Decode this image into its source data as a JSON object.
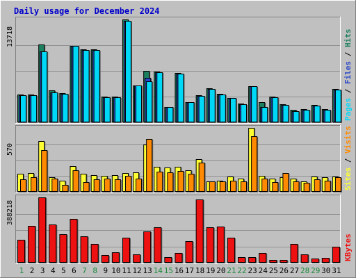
{
  "title": "Daily usage for December 2024",
  "colors": {
    "background": "#c0c0c0",
    "frame_light": "#ffffff",
    "frame_dark": "#808080",
    "grid": "#909090",
    "title_blue": "#0000cc",
    "hits": "#1c7f5f",
    "files": "#2c48c8",
    "pages": "#00d8f8",
    "visits": "#ff8a00",
    "sites": "#ffff33",
    "kbytes": "#ee1111",
    "weekday_label": "#000000",
    "weekend_label": "#1a8a3a"
  },
  "chart_data": [
    {
      "type": "bar",
      "title": "Daily usage for December 2024",
      "ylabel_max": "13718",
      "legend": [
        "Pages",
        "Files",
        "Hits"
      ],
      "legend_colors": [
        "#00d8f8",
        "#2c48c8",
        "#1c7f5f"
      ],
      "ylim": [
        0,
        13718
      ],
      "categories": [
        "1",
        "2",
        "3",
        "4",
        "5",
        "6",
        "7",
        "8",
        "9",
        "10",
        "11",
        "12",
        "13",
        "14",
        "15",
        "16",
        "17",
        "18",
        "19",
        "20",
        "21",
        "22",
        "23",
        "24",
        "25",
        "26",
        "27",
        "28",
        "29",
        "30",
        "31"
      ],
      "series": [
        {
          "name": "Hits",
          "values": [
            3680,
            3690,
            10400,
            4300,
            3910,
            10200,
            9700,
            9700,
            3420,
            3420,
            13718,
            4900,
            6880,
            6760,
            2040,
            6540,
            2720,
            3610,
            4550,
            3760,
            3290,
            2470,
            4840,
            2710,
            3420,
            2440,
            1690,
            1800,
            2300,
            1800,
            4420
          ]
        },
        {
          "name": "Files",
          "values": [
            3600,
            3600,
            9500,
            3990,
            3800,
            10180,
            9650,
            9660,
            3330,
            3340,
            13500,
            4900,
            5960,
            6700,
            2040,
            6470,
            2660,
            3550,
            4480,
            3680,
            3200,
            2450,
            4780,
            2000,
            3340,
            2280,
            1440,
            1690,
            2200,
            1650,
            4380
          ]
        },
        {
          "name": "Pages",
          "values": [
            3600,
            3600,
            9500,
            3990,
            3800,
            10180,
            9650,
            9660,
            3330,
            3340,
            13500,
            4900,
            5510,
            6700,
            2040,
            6470,
            2660,
            3550,
            4480,
            3680,
            3200,
            2450,
            4780,
            2000,
            3340,
            2280,
            1440,
            1690,
            2200,
            1650,
            4380
          ]
        }
      ]
    },
    {
      "type": "bar",
      "ylabel_max": "570",
      "legend": [
        "Sites",
        "Visits"
      ],
      "legend_colors": [
        "#ffff33",
        "#ff8a00"
      ],
      "ylim": [
        0,
        570
      ],
      "categories": [
        "1",
        "2",
        "3",
        "4",
        "5",
        "6",
        "7",
        "8",
        "9",
        "10",
        "11",
        "12",
        "13",
        "14",
        "15",
        "16",
        "17",
        "18",
        "19",
        "20",
        "21",
        "22",
        "23",
        "24",
        "25",
        "26",
        "27",
        "28",
        "29",
        "30",
        "31"
      ],
      "series": [
        {
          "name": "Sites",
          "values": [
            160,
            170,
            450,
            130,
            100,
            230,
            160,
            150,
            140,
            150,
            165,
            175,
            420,
            220,
            215,
            220,
            190,
            290,
            95,
            100,
            135,
            120,
            570,
            145,
            115,
            130,
            115,
            95,
            135,
            130,
            135
          ]
        },
        {
          "name": "Visits",
          "values": [
            110,
            130,
            370,
            120,
            60,
            190,
            85,
            110,
            120,
            110,
            140,
            120,
            470,
            180,
            175,
            185,
            160,
            260,
            90,
            95,
            100,
            90,
            495,
            115,
            85,
            165,
            95,
            80,
            110,
            100,
            130
          ]
        }
      ]
    },
    {
      "type": "bar",
      "ylabel_max": "388218",
      "legend": [
        "KBytes"
      ],
      "legend_colors": [
        "#ee1111"
      ],
      "ylim": [
        0,
        388218
      ],
      "categories": [
        "1",
        "2",
        "3",
        "4",
        "5",
        "6",
        "7",
        "8",
        "9",
        "10",
        "11",
        "12",
        "13",
        "14",
        "15",
        "16",
        "17",
        "18",
        "19",
        "20",
        "21",
        "22",
        "23",
        "24",
        "25",
        "26",
        "27",
        "28",
        "29",
        "30",
        "31"
      ],
      "series": [
        {
          "name": "KBytes",
          "values": [
            135000,
            218000,
            388218,
            226000,
            168000,
            262000,
            158000,
            112000,
            45000,
            64000,
            147000,
            50000,
            187000,
            209000,
            31000,
            56000,
            128000,
            377000,
            209000,
            213000,
            148000,
            31000,
            34000,
            57000,
            15000,
            18000,
            110000,
            50000,
            24000,
            30000,
            94000
          ]
        }
      ]
    }
  ],
  "x_labels": {
    "days": [
      "1",
      "2",
      "3",
      "4",
      "5",
      "6",
      "7",
      "8",
      "9",
      "10",
      "11",
      "12",
      "13",
      "14",
      "15",
      "16",
      "17",
      "18",
      "19",
      "20",
      "21",
      "22",
      "23",
      "24",
      "25",
      "26",
      "27",
      "28",
      "29",
      "30",
      "31"
    ],
    "weekend": [
      "1",
      "7",
      "8",
      "14",
      "15",
      "21",
      "22",
      "28",
      "29"
    ]
  }
}
